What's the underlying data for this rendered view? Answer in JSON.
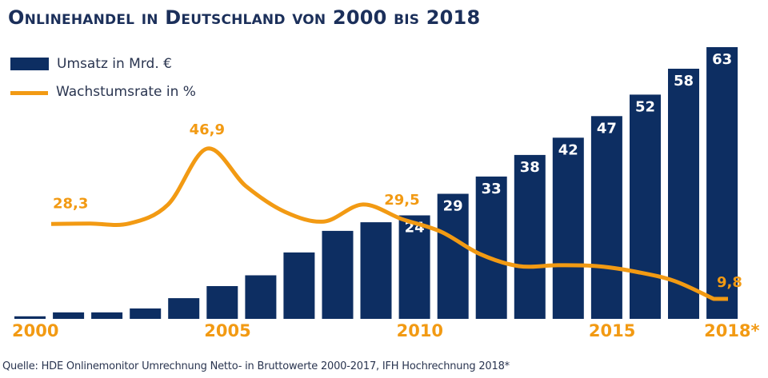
{
  "chart_data": {
    "type": "bar",
    "title": "Onlinehandel in Deutschland von 2000 bis 2018",
    "xlabel": "",
    "ylabel": "",
    "categories": [
      "2000",
      "2001",
      "2002",
      "2003",
      "2004",
      "2005",
      "2006",
      "2007",
      "2008",
      "2009",
      "2010",
      "2011",
      "2012",
      "2013",
      "2014",
      "2015",
      "2016",
      "2017",
      "2018"
    ],
    "series": [
      {
        "name": "Umsatz in Mrd. €",
        "type": "bar",
        "color": "#0d2e62",
        "values": [
          0.6,
          1.5,
          1.5,
          2.4,
          4.8,
          7.6,
          10.1,
          15.4,
          20.4,
          22.4,
          24,
          29,
          33,
          38,
          42,
          47,
          52,
          58,
          63
        ],
        "data_labels": {
          "2010": "24",
          "2011": "29",
          "2012": "33",
          "2013": "38",
          "2014": "42",
          "2015": "47",
          "2016": "52",
          "2017": "58",
          "2018": "63"
        }
      },
      {
        "name": "Wachstumsrate in %",
        "type": "line",
        "color": "#f29a13",
        "x": [
          "2001",
          "2002",
          "2003",
          "2004",
          "2005",
          "2006",
          "2007",
          "2008",
          "2009",
          "2010",
          "2011",
          "2012",
          "2013",
          "2014",
          "2015",
          "2016",
          "2017",
          "2018"
        ],
        "values": [
          28.3,
          28.4,
          28.4,
          33.1,
          46.9,
          37.6,
          31.3,
          28.9,
          33.1,
          29.5,
          26.4,
          20.9,
          17.9,
          18.1,
          17.9,
          16.5,
          14.2,
          9.8
        ],
        "data_labels": {
          "2001": "28,3",
          "2005": "46,9",
          "2010": "29,5",
          "2018": "9,8"
        }
      }
    ],
    "x_tick_labels": [
      {
        "category": "2000",
        "text": "2000"
      },
      {
        "category": "2005",
        "text": "2005"
      },
      {
        "category": "2010",
        "text": "2010"
      },
      {
        "category": "2015",
        "text": "2015"
      },
      {
        "category": "2018",
        "text": "2018*"
      }
    ],
    "ylim_bars": [
      0,
      63
    ],
    "ylim_line": [
      9.8,
      46.9
    ],
    "grid": false,
    "legend": "top-left"
  },
  "header": {
    "title": "Onlinehandel in Deutschland von 2000 bis 2018"
  },
  "legend": {
    "bar_label": "Umsatz in Mrd. €",
    "line_label": "Wachstumsrate in %"
  },
  "footer": {
    "source": "Quelle: HDE Onlinemonitor Umrechnung Netto- in Bruttowerte 2000-2017, IFH Hochrechnung 2018*"
  }
}
